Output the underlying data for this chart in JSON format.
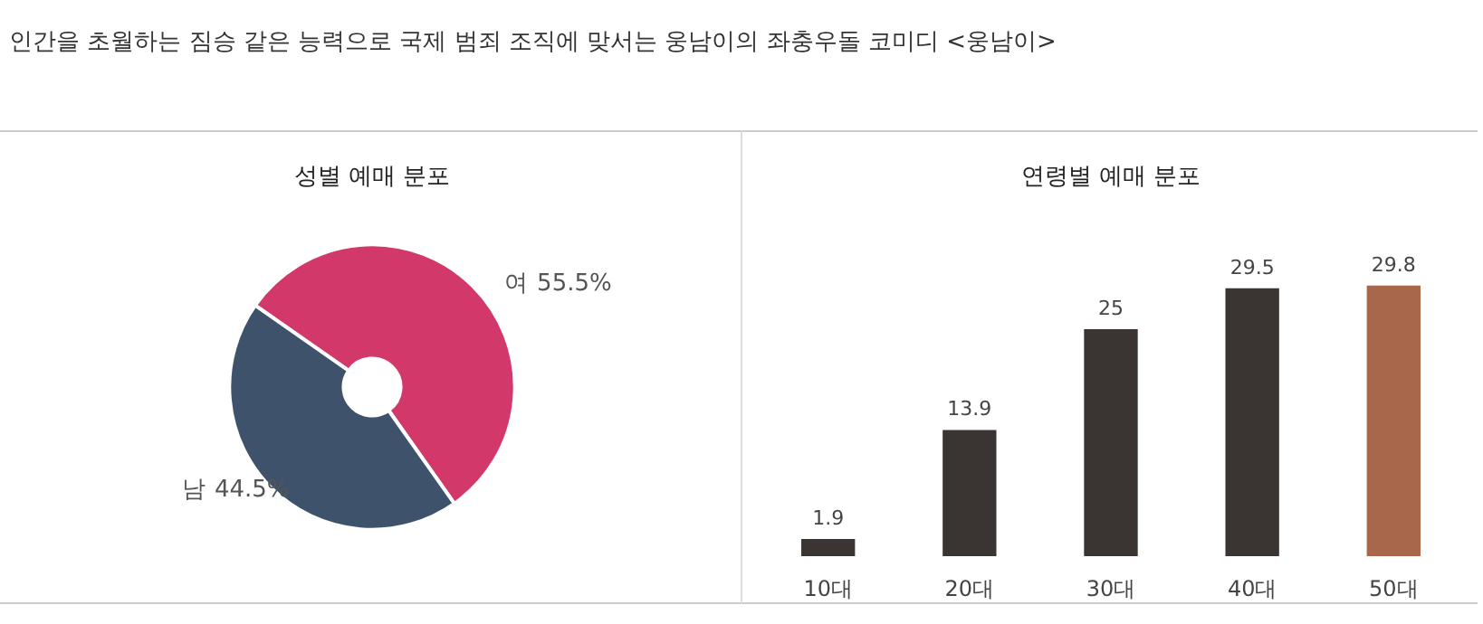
{
  "chart_data": [
    {
      "type": "donut",
      "title": "성별 예매 분포",
      "annotations": [
        "인간을 초월하는 짐승 같은 능력으로 국제 범죄 조직에 맞서는 웅남이의 좌충우돌 코미디 <웅남이>"
      ],
      "categories": [
        "여",
        "남"
      ],
      "values": [
        55.5,
        44.5
      ],
      "colors": [
        "#d2386a",
        "#3f526b"
      ],
      "value_labels": [
        "55.5%",
        "44.5%"
      ]
    },
    {
      "type": "bar",
      "title": "연령별 예매 분포",
      "categories": [
        "10대",
        "20대",
        "30대",
        "40대",
        "50대"
      ],
      "values": [
        1.9,
        13.9,
        25,
        29.5,
        29.8
      ],
      "colors": [
        "#3a3532",
        "#3a3532",
        "#3a3532",
        "#3a3532",
        "#a8674a"
      ],
      "data_labels": true,
      "tick_labels": "x",
      "grid": false
    }
  ]
}
